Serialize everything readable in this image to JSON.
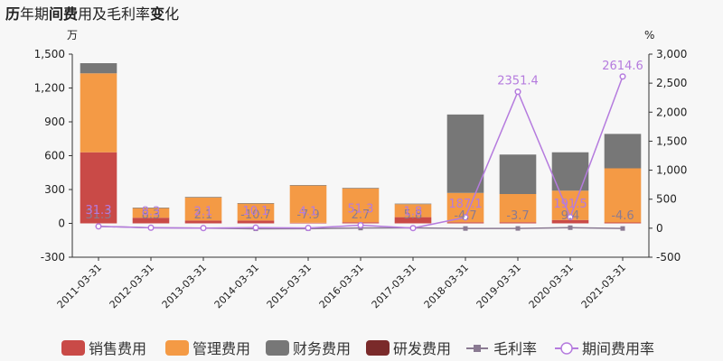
{
  "chart_data": {
    "type": "bar",
    "title_parts": [
      {
        "text": "历",
        "bold": true
      },
      {
        "text": "年期",
        "bold": false
      },
      {
        "text": "间费",
        "bold": true
      },
      {
        "text": "用及毛利率",
        "bold": false
      },
      {
        "text": "变",
        "bold": true
      },
      {
        "text": "化",
        "bold": false
      }
    ],
    "left_unit": "万",
    "right_unit": "%",
    "categories": [
      "2011-03-31",
      "2012-03-31",
      "2013-03-31",
      "2014-03-31",
      "2015-03-31",
      "2016-03-31",
      "2017-03-31",
      "2018-03-31",
      "2019-03-31",
      "2020-03-31",
      "2021-03-31"
    ],
    "left_axis": {
      "min": -300,
      "max": 1500,
      "ticks": [
        -300,
        0,
        300,
        600,
        900,
        1200,
        1500
      ],
      "tick_labels": [
        "-300",
        "0",
        "300",
        "600",
        "900",
        "1,200",
        "1,500"
      ]
    },
    "right_axis": {
      "min": -500,
      "max": 3000,
      "ticks": [
        -500,
        0,
        500,
        1000,
        1500,
        2000,
        2500,
        3000
      ],
      "tick_labels": [
        "-500",
        "0",
        "500",
        "1,000",
        "1,500",
        "2,000",
        "2,500",
        "3,000"
      ]
    },
    "bar_series": [
      {
        "name": "销售费用",
        "color": "#c94a47",
        "values": [
          630,
          50,
          25,
          25,
          5,
          10,
          55,
          10,
          10,
          30,
          8
        ]
      },
      {
        "name": "管理费用",
        "color": "#f49a45",
        "values": [
          700,
          85,
          205,
          150,
          330,
          300,
          115,
          260,
          250,
          260,
          480
        ]
      },
      {
        "name": "财务费用",
        "color": "#777777",
        "values": [
          90,
          5,
          5,
          5,
          5,
          5,
          5,
          695,
          350,
          340,
          305
        ]
      },
      {
        "name": "研发费用",
        "color": "#7a2a2a",
        "values": [
          0,
          0,
          0,
          0,
          0,
          0,
          0,
          0,
          0,
          0,
          0
        ]
      }
    ],
    "line_series": [
      {
        "name": "毛利率",
        "color": "#8a7a92",
        "marker": "square",
        "values": [
          31.3,
          8.3,
          2.1,
          -10.7,
          -7.9,
          2.7,
          5.8,
          -4.7,
          -3.7,
          9.4,
          -4.6
        ],
        "labels": [
          "31.3",
          "8.3",
          "2.1",
          "-10.7",
          "-7.9",
          "2.7",
          "5.8",
          "-4.7",
          "-3.7",
          "9.4",
          "-4.6"
        ]
      },
      {
        "name": "期间费用率",
        "color": "#b57bde",
        "marker": "circle",
        "values": [
          31.3,
          8.3,
          2.1,
          10.1,
          4.1,
          51.3,
          1.8,
          187.1,
          2351.4,
          191.5,
          2614.6
        ],
        "labels": [
          "31.3",
          "8.3",
          "2.1",
          "10.1",
          "4.1",
          "51.3",
          "1.8",
          "187.1",
          "2351.4",
          "191.5",
          "2614.6"
        ]
      }
    ],
    "legend": {
      "placement": "bottom"
    },
    "grid": false
  }
}
